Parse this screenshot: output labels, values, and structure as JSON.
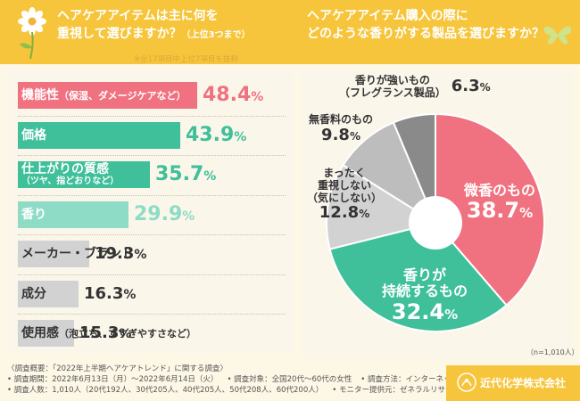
{
  "header": {
    "left_title_line1": "ヘアケアアイテムは主に何を",
    "left_title_line2": "重視して選びますか？",
    "left_title_suffix": "（上位3つまで）",
    "right_title_line1": "ヘアケアアイテム購入の際に",
    "right_title_line2": "どのような香りがする製品を選びますか？",
    "note": "※全17項目中上位7項目を抜粋"
  },
  "colors": {
    "header": "#f6c53b",
    "pink": "#f0717f",
    "teal": "#3fbf9a",
    "teal_light": "#8fdcc6",
    "gray": "#d2d2d2",
    "dark_gray": "#8a8a8a",
    "light_gray": "#bdbdbd"
  },
  "chart_data": [
    {
      "type": "bar",
      "orientation": "horizontal",
      "title": "ヘアケアアイテムは主に何を重視して選びますか？（上位3つまで）",
      "categories": [
        {
          "label": "機能性",
          "sub": "（保湿、ダメージケアなど）",
          "value": 48.4,
          "color": "#f0717f",
          "value_color": "#f0717f",
          "label_dark": false
        },
        {
          "label": "価格",
          "sub": "",
          "value": 43.9,
          "color": "#3fbf9a",
          "value_color": "#3fbf9a",
          "label_dark": false
        },
        {
          "label": "仕上がりの質感",
          "sub": "（ツヤ、指どおりなど）",
          "value": 35.7,
          "color": "#3fbf9a",
          "value_color": "#3fbf9a",
          "label_dark": false
        },
        {
          "label": "香り",
          "sub": "",
          "value": 29.9,
          "color": "#8fdcc6",
          "value_color": "#8fdcc6",
          "label_dark": false
        },
        {
          "label": "メーカー・ブランド",
          "sub": "",
          "value": 19.3,
          "color": "#d2d2d2",
          "value_color": "#333333",
          "label_dark": true
        },
        {
          "label": "成分",
          "sub": "",
          "value": 16.3,
          "color": "#d2d2d2",
          "value_color": "#333333",
          "label_dark": true
        },
        {
          "label": "使用感",
          "sub": "（泡立ち、すすぎやすさなど）",
          "value": 15.3,
          "color": "#d2d2d2",
          "value_color": "#333333",
          "label_dark": true
        }
      ],
      "unit": "%"
    },
    {
      "type": "pie",
      "title": "ヘアケアアイテム購入の際にどのような香りがする製品を選びますか？",
      "n": "（n=1,010人）",
      "slices": [
        {
          "label": "微香のもの",
          "value": 38.7,
          "color": "#f0717f"
        },
        {
          "label": "香りが持続するもの",
          "value": 32.4,
          "color": "#3fbf9a"
        },
        {
          "label": "まったく重視しない（気にしない）",
          "value": 12.8,
          "color": "#d2d2d2"
        },
        {
          "label": "無香料のもの",
          "value": 9.8,
          "color": "#bdbdbd"
        },
        {
          "label": "香りが強いもの（フレグランス製品）",
          "value": 6.3,
          "color": "#8a8a8a"
        }
      ]
    }
  ],
  "pie_labels": {
    "s0_line1": "微香のもの",
    "s0_value": "38.7",
    "s1_line1": "香りが",
    "s1_line2": "持続するもの",
    "s1_value": "32.4",
    "s2_line1": "まったく",
    "s2_line2": "重視しない",
    "s2_line3": "（気にしない）",
    "s2_value": "12.8",
    "s3_line1": "無香料のもの",
    "s3_value": "9.8",
    "s4_line1": "香りが強いもの",
    "s4_line2": "（フレグランス製品）",
    "s4_value": "6.3",
    "pct": "%"
  },
  "footer": {
    "line1": "〈調査概要：「2022年上半期ヘアケアトレンド」に関する調査〉",
    "line2a": "• 調査期間：2022年6月13日（月）〜2022年6月14日（火）",
    "line2b": "• 調査対象：全国20代〜60代の女性",
    "line2c": "• 調査方法：インターネット調査",
    "line3a": "• 調査人数：1,010人（20代192人、30代205人、40代205人、50代208人、60代200人）",
    "line3b": "• モニター提供元：ゼネラルリサーチ",
    "company": "近代化学株式会社"
  }
}
